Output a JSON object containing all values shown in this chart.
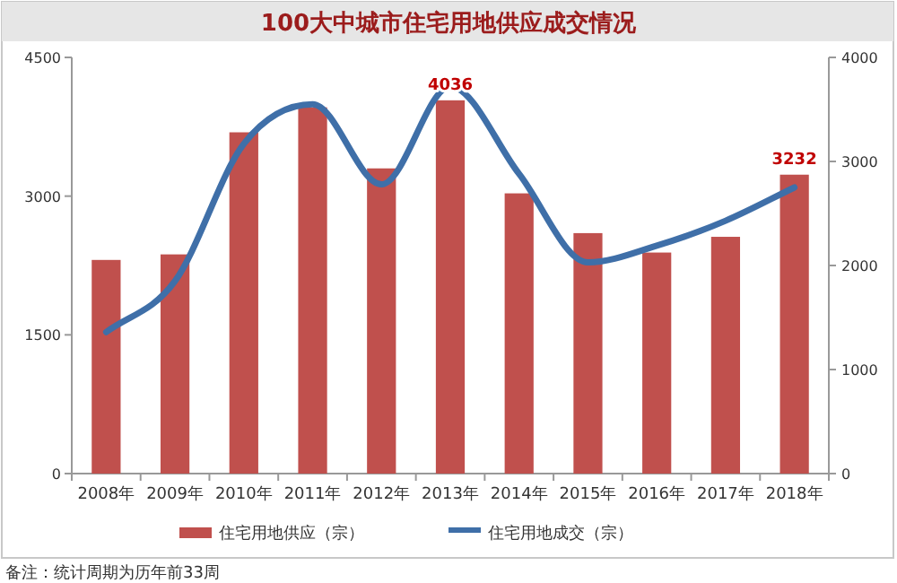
{
  "chart_data": {
    "type": "bar",
    "title": "100大中城市住宅用地供应成交情况",
    "categories": [
      "2008年",
      "2009年",
      "2010年",
      "2011年",
      "2012年",
      "2013年",
      "2014年",
      "2015年",
      "2016年",
      "2017年",
      "2018年"
    ],
    "series": [
      {
        "name": "住宅用地供应（宗）",
        "color": "#c0504d",
        "values": [
          2310,
          2370,
          3690,
          3960,
          3300,
          4036,
          3030,
          2600,
          2390,
          2560,
          3232
        ],
        "value_labels": [
          null,
          null,
          null,
          null,
          null,
          "4036",
          null,
          null,
          null,
          null,
          "3232"
        ]
      },
      {
        "name": "住宅用地成交（宗）",
        "type": "line",
        "axis": "y2",
        "color": "#3f6fa8",
        "values": [
          1360,
          1850,
          3170,
          3550,
          2780,
          3720,
          2880,
          2030,
          2190,
          2430,
          2750
        ]
      }
    ],
    "ylim": [
      0,
      4500
    ],
    "yticks": [
      0,
      1500,
      3000,
      4500
    ],
    "y2lim": [
      0,
      4000
    ],
    "y2ticks": [
      0,
      1000,
      2000,
      3000,
      4000
    ],
    "legend": "bottom",
    "annotations": [
      "备注：统计周期为历年前33周"
    ]
  }
}
